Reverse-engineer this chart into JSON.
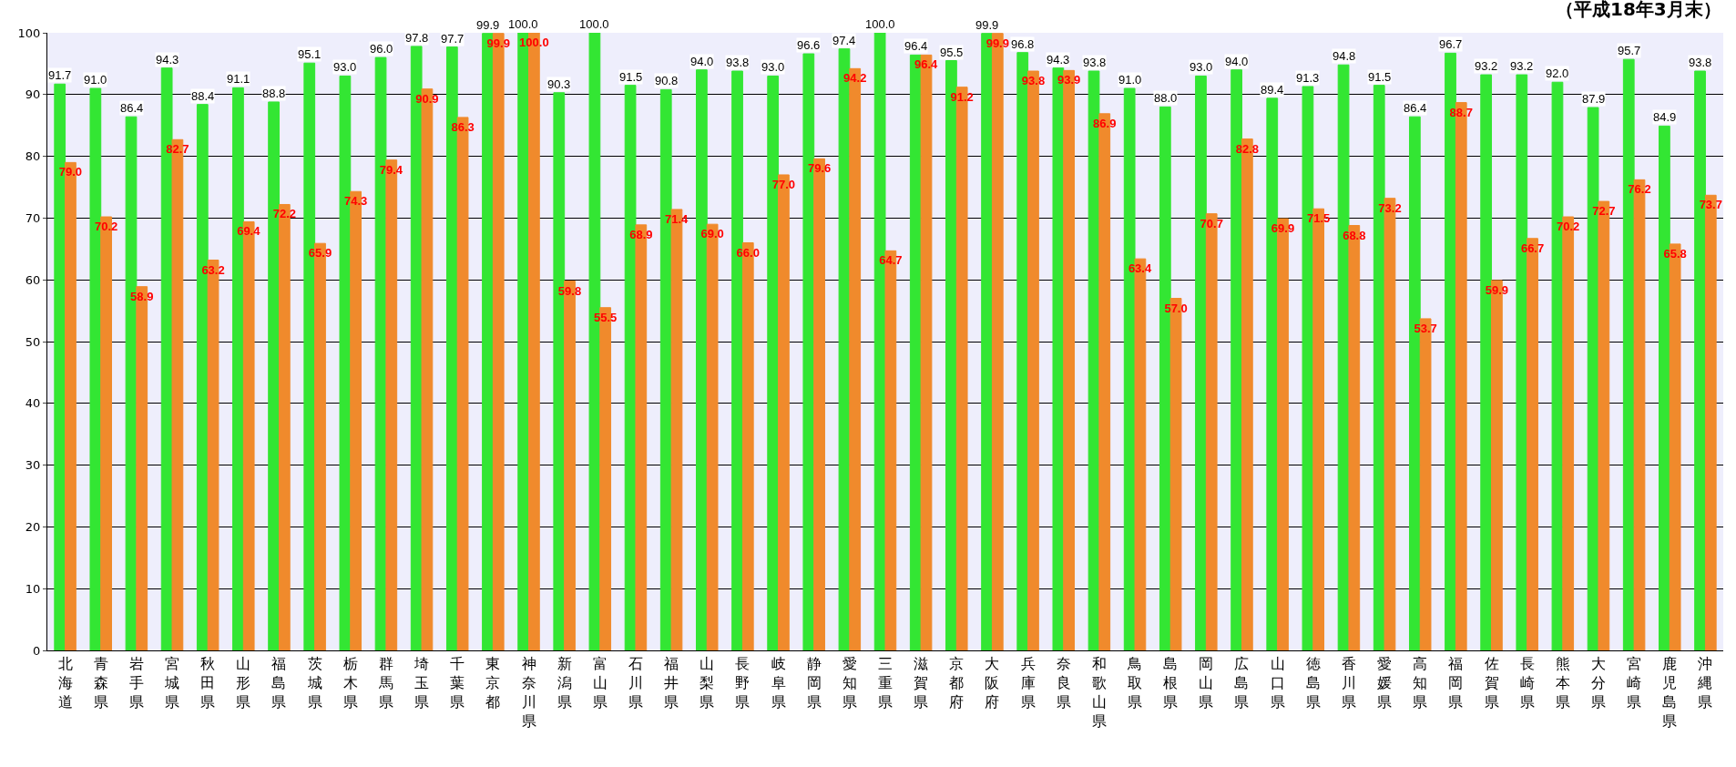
{
  "chart_data": {
    "type": "bar",
    "annotations": [
      "（平成18年3月末）"
    ],
    "categories": [
      "北海道",
      "青森県",
      "岩手県",
      "宮城県",
      "秋田県",
      "山形県",
      "福島県",
      "茨城県",
      "栃木県",
      "群馬県",
      "埼玉県",
      "千葉県",
      "東京都",
      "神奈川県",
      "新潟県",
      "富山県",
      "石川県",
      "福井県",
      "山梨県",
      "長野県",
      "岐阜県",
      "静岡県",
      "愛知県",
      "三重県",
      "滋賀県",
      "京都府",
      "大阪府",
      "兵庫県",
      "奈良県",
      "和歌山県",
      "鳥取県",
      "島根県",
      "岡山県",
      "広島県",
      "山口県",
      "徳島県",
      "香川県",
      "愛媛県",
      "高知県",
      "福岡県",
      "佐賀県",
      "長崎県",
      "熊本県",
      "大分県",
      "宮崎県",
      "鹿児島県",
      "沖縄県"
    ],
    "series": [
      {
        "color": "#33e633",
        "values": [
          91.7,
          91.0,
          86.4,
          94.3,
          88.4,
          91.1,
          88.8,
          95.1,
          93.0,
          96.0,
          97.8,
          97.7,
          99.9,
          100.0,
          90.3,
          100.0,
          91.5,
          90.8,
          94.0,
          93.8,
          93.0,
          96.6,
          97.4,
          100.0,
          96.4,
          95.5,
          99.9,
          96.8,
          94.3,
          93.8,
          91.0,
          88.0,
          93.0,
          94.0,
          89.4,
          91.3,
          94.8,
          91.5,
          86.4,
          96.7,
          93.2,
          93.2,
          92.0,
          87.9,
          95.7,
          84.9,
          93.8
        ],
        "value_labels": [
          "91.7",
          "91.0",
          "86.4",
          "94.3",
          "88.4",
          "91.1",
          "88.8",
          "95.1",
          "93.0",
          "96.0",
          "97.8",
          "97.7",
          "99.9",
          "100.0",
          "90.3",
          "100.0",
          "91.5",
          "90.8",
          "94.0",
          "93.8",
          "93.0",
          "96.6",
          "97.4",
          "100.0",
          "96.4",
          "95.5",
          "99.9",
          "96.8",
          "94.3",
          "93.8",
          "91.0",
          "88.0",
          "93.0",
          "94.0",
          "89.4",
          "91.3",
          "94.8",
          "91.5",
          "86.4",
          "96.7",
          "93.2",
          "93.2",
          "92.0",
          "87.9",
          "95.7",
          "84.9",
          "93.8"
        ]
      },
      {
        "color": "#f08a2c",
        "values": [
          79.0,
          70.2,
          58.9,
          82.7,
          63.2,
          69.4,
          72.2,
          65.9,
          74.3,
          79.4,
          90.9,
          86.3,
          99.9,
          100.0,
          59.8,
          55.5,
          68.9,
          71.4,
          69.0,
          66.0,
          77.0,
          79.6,
          94.2,
          64.7,
          96.4,
          91.2,
          99.9,
          93.8,
          93.9,
          86.9,
          63.4,
          57.0,
          70.7,
          82.8,
          69.9,
          71.5,
          68.8,
          73.2,
          53.7,
          88.7,
          59.9,
          66.7,
          70.2,
          72.7,
          76.2,
          65.8,
          73.7
        ],
        "value_labels": [
          "79.0",
          "70.2",
          "58.9",
          "82.7",
          "63.2",
          "69.4",
          "72.2",
          "65.9",
          "74.3",
          "79.4",
          "90.9",
          "86.3",
          "99.9",
          "100.0",
          "59.8",
          "55.5",
          "68.9",
          "71.4",
          "69.0",
          "66.0",
          "77.0",
          "79.6",
          "94.2",
          "64.7",
          "96.4",
          "91.2",
          "99.9",
          "93.8",
          "93.9",
          "86.9",
          "63.4",
          "57.0",
          "70.7",
          "82.8",
          "69.9",
          "71.5",
          "68.8",
          "73.2",
          "53.7",
          "88.7",
          "59.9",
          "66.7",
          "70.2",
          "72.7",
          "76.2",
          "65.8",
          "73.7"
        ]
      }
    ],
    "ylim": [
      0,
      100
    ],
    "yticks": [
      0,
      10,
      20,
      30,
      40,
      50,
      60,
      70,
      80,
      90,
      100
    ],
    "grid": "y"
  }
}
